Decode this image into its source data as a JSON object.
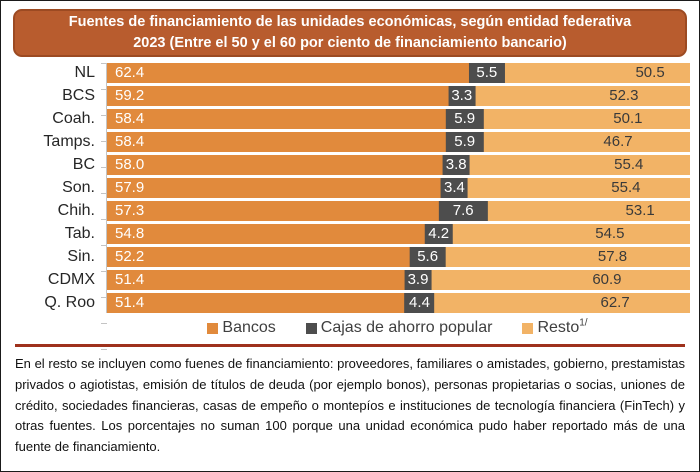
{
  "title": {
    "line1": "Fuentes de financiamiento de las unidades económicas, según entidad federativa",
    "line2": "2023 (Entre el 50 y el 60 por ciento de financiamiento bancario)"
  },
  "legend": [
    {
      "label": "Bancos",
      "color": "#E18A3C"
    },
    {
      "label": "Cajas de ahorro popular",
      "color": "#4D4D4D"
    },
    {
      "label": "Resto",
      "superscript": "1/",
      "color": "#F2B366"
    }
  ],
  "colors": {
    "bancos": "#E18A3C",
    "cajas": "#4D4D4D",
    "resto": "#F2B366",
    "title_background": "#B85C2E",
    "title_border": "#9C4A22",
    "divider": "#9E311C"
  },
  "footnote": "En el resto se incluyen como fuenes de financiamiento: proveedores, familiares o amistades, gobierno, prestamistas privados o agiotistas, emisión de títulos de deuda (por ejemplo bonos), personas propietarias o socias, uniones de crédito, sociedades financieras, casas de empeño o montepíos e instituciones de tecnología financiera (FinTech) y otras fuentes. Los porcentajes no suman 100 porque una unidad económica pudo haber reportado más de una fuente de financiamiento.",
  "chart_data": {
    "type": "bar",
    "orientation": "horizontal-stacked",
    "title": "Fuentes de financiamiento de las unidades económicas, según entidad federativa 2023 (Entre el 50 y el 60 por ciento de financiamiento bancario)",
    "categories": [
      "NL",
      "BCS",
      "Coah.",
      "Tamps.",
      "BC",
      "Son.",
      "Chih.",
      "Tab.",
      "Sin.",
      "CDMX",
      "Q. Roo"
    ],
    "series": [
      {
        "name": "Bancos",
        "values": [
          62.4,
          59.2,
          58.4,
          58.4,
          58.0,
          57.9,
          57.3,
          54.8,
          52.2,
          51.4,
          51.4
        ]
      },
      {
        "name": "Cajas de ahorro popular",
        "values": [
          5.5,
          3.3,
          5.9,
          5.9,
          3.8,
          3.4,
          7.6,
          4.2,
          5.6,
          3.9,
          4.4
        ]
      },
      {
        "name": "Resto",
        "values": [
          50.5,
          52.3,
          50.1,
          46.7,
          55.4,
          55.4,
          53.1,
          54.5,
          57.8,
          60.9,
          62.7
        ]
      }
    ],
    "xlim": [
      0,
      100
    ],
    "value_labels": "one-decimal",
    "grid": false,
    "legend_position": "bottom"
  }
}
